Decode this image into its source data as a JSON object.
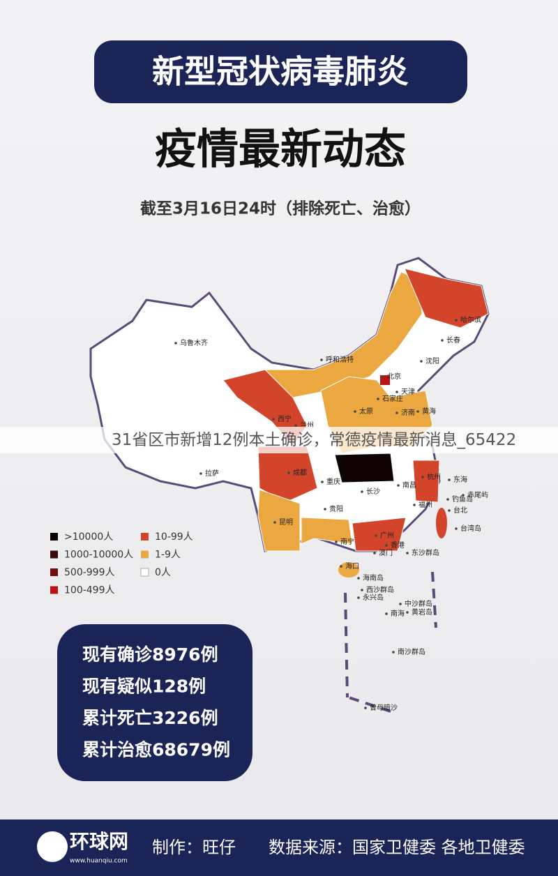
{
  "header": {
    "title": "新型冠状病毒肺炎",
    "headline": "疫情最新动态",
    "subtitle": "截至3月16日24时（排除死亡、治愈）"
  },
  "caption": "31省区市新增12例本土确诊，常德疫情最新消息_65422",
  "legend": [
    {
      "label": ">10000人",
      "color": "#0d0303"
    },
    {
      "label": "1000-10000人",
      "color": "#3a0a08"
    },
    {
      "label": "500-999人",
      "color": "#6e0f0c"
    },
    {
      "label": "100-499人",
      "color": "#b81414"
    },
    {
      "label": "10-99人",
      "color": "#d2452a"
    },
    {
      "label": "1-9人",
      "color": "#eba840"
    },
    {
      "label": "0人",
      "color": "#ffffff"
    }
  ],
  "map_labels": [
    "乌鲁木齐",
    "呼和浩特",
    "哈尔滨",
    "长春",
    "沈阳",
    "北京",
    "天津",
    "石家庄",
    "太原",
    "济南",
    "西宁",
    "兰州",
    "拉萨",
    "成都",
    "重庆",
    "长沙",
    "南昌",
    "杭州",
    "福州",
    "贵阳",
    "昆明",
    "南宁",
    "广州",
    "香港",
    "澳门",
    "海口",
    "海南岛",
    "台北",
    "台湾岛",
    "钓鱼岛",
    "赤尾屿",
    "东沙群岛",
    "西沙群岛",
    "永兴岛",
    "中沙群岛",
    "黄岩岛",
    "南沙群岛",
    "曾母暗沙",
    "黄海",
    "东海",
    "南海"
  ],
  "stats": [
    "现有确诊8976例",
    "现有疑似128例",
    "累计死亡3226例",
    "累计治愈68679例"
  ],
  "footer": {
    "logo": "环球网",
    "url": "www.huanqiu.com",
    "credit": "制作：旺仔",
    "source": "数据来源：国家卫健委 各地卫健委"
  }
}
